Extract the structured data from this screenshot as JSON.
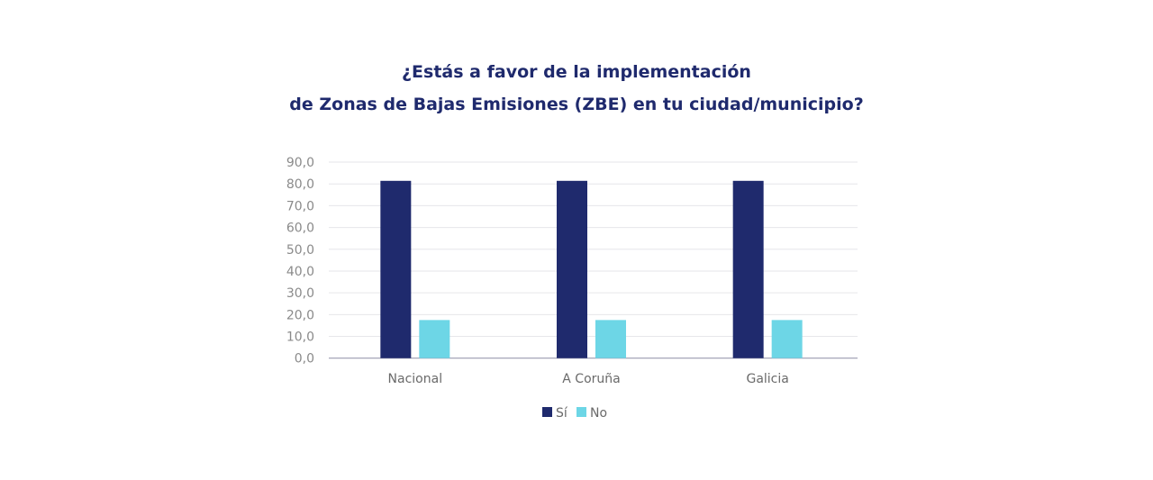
{
  "chart_data": {
    "type": "bar",
    "title": [
      "¿Estás a favor de la implementación",
      "de Zonas de Bajas Emisiones (ZBE) en tu ciudad/municipio?"
    ],
    "categories": [
      "Nacional",
      "A Coruña",
      "Galicia"
    ],
    "series": [
      {
        "name": "Sí",
        "values": [
          81.4,
          81.4,
          81.4
        ],
        "color": "#1f2a6d"
      },
      {
        "name": "No",
        "values": [
          17.5,
          17.5,
          17.5
        ],
        "color": "#6dd6e6"
      }
    ],
    "ylim": [
      0,
      90
    ],
    "yticks": [
      "0,0",
      "10,0",
      "20,0",
      "30,0",
      "40,0",
      "50,0",
      "60,0",
      "70,0",
      "80,0",
      "90,0"
    ],
    "grid": true,
    "legend": "bottom-center",
    "xlabel": "",
    "ylabel": ""
  }
}
